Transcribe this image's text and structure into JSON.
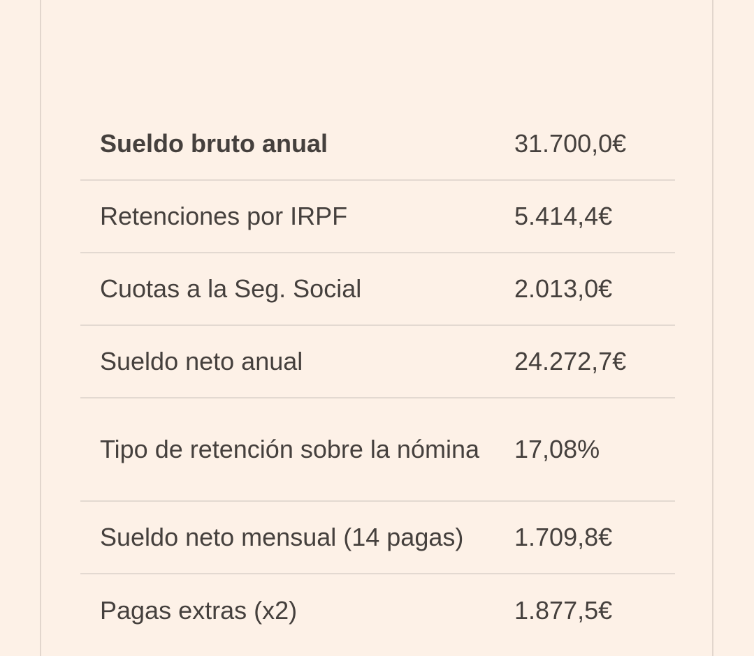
{
  "salary_table": {
    "rows": [
      {
        "label": "Sueldo bruto anual",
        "value": "31.700,0€"
      },
      {
        "label": "Retenciones por IRPF",
        "value": "5.414,4€"
      },
      {
        "label": "Cuotas a la Seg. Social",
        "value": "2.013,0€"
      },
      {
        "label": "Sueldo neto anual",
        "value": "24.272,7€"
      },
      {
        "label": "Tipo de retención sobre la nómina",
        "value": "17,08%"
      },
      {
        "label": "Sueldo neto mensual (14 pagas)",
        "value": "1.709,8€"
      },
      {
        "label": "Pagas extras (x2)",
        "value": "1.877,5€"
      }
    ]
  }
}
